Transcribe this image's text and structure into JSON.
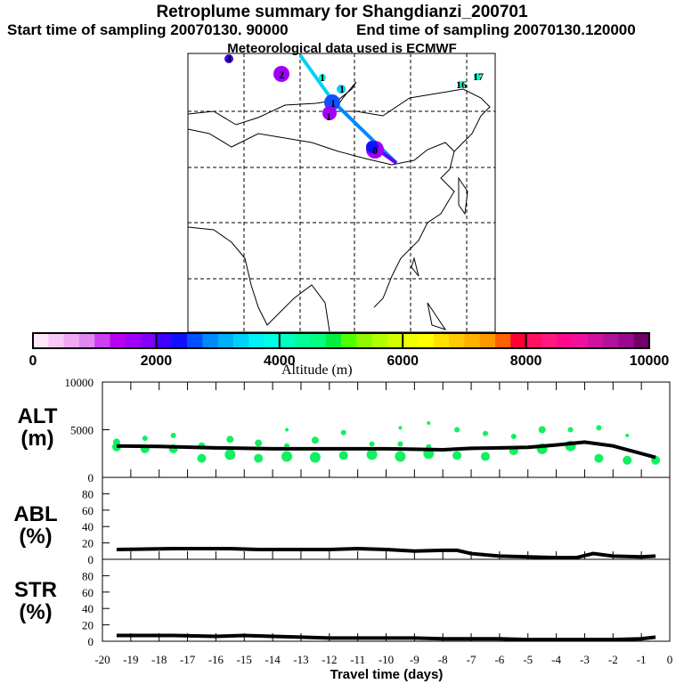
{
  "title": "Retroplume summary for Shangdianzi_200701",
  "subtitle_start": "Start time of sampling 20070130. 90000",
  "subtitle_end": "End time of sampling 20070130.120000",
  "met": "Meteorological data used is ECMWF",
  "chart_data": {
    "type": "line",
    "title": "Retroplume summary for Shangdianzi_200701",
    "xlabel": "Travel time (days)",
    "xlim": [
      -20,
      0
    ],
    "xticks": [
      "-20",
      "-19",
      "-18",
      "-17",
      "-16",
      "-15",
      "-14",
      "-13",
      "-12",
      "-11",
      "-10",
      "-9",
      "-8",
      "-7",
      "-6",
      "-5",
      "-4",
      "-3",
      "-2",
      "-1",
      "0"
    ],
    "colorbar": {
      "label": "Altitude (m)",
      "range": [
        0,
        10000
      ],
      "ticks": [
        "0",
        "2000",
        "4000",
        "6000",
        "8000",
        "10000"
      ],
      "colors": [
        "#fde6fa",
        "#f8c8f8",
        "#f0a8f4",
        "#e088f0",
        "#cc40f0",
        "#b800f0",
        "#a000f8",
        "#8000f8",
        "#4000ff",
        "#1010ff",
        "#0050ff",
        "#0088ff",
        "#00b0f8",
        "#00d0f8",
        "#00f0f8",
        "#00ffe0",
        "#00ffc0",
        "#00ff98",
        "#00ff80",
        "#00f040",
        "#50ff00",
        "#90f800",
        "#b0ff00",
        "#d0ff00",
        "#f0ff00",
        "#ffff00",
        "#ffe000",
        "#ffc800",
        "#ffb000",
        "#ff9800",
        "#ff6000",
        "#ff0030",
        "#ff1060",
        "#ff1880",
        "#ff0890",
        "#f010a0",
        "#d010a0",
        "#b0109a",
        "#980890",
        "#700068"
      ]
    },
    "panels": [
      {
        "name": "ALT",
        "label1": "ALT",
        "label2": "(m)",
        "ylim": [
          0,
          10000
        ],
        "yticks": [
          "0",
          "5000",
          "10000"
        ],
        "x": [
          -19.5,
          -18,
          -16,
          -14,
          -12,
          -10,
          -9,
          -8,
          -7,
          -6,
          -5,
          -4,
          -3,
          -2,
          -1,
          -0.5
        ],
        "y": [
          3300,
          3250,
          3100,
          3000,
          3000,
          3000,
          2950,
          2900,
          3050,
          3100,
          3150,
          3400,
          3700,
          3300,
          2500,
          2100
        ],
        "dots_x": [
          -19.5,
          -19.5,
          -18.5,
          -18.5,
          -17.5,
          -17.5,
          -16.5,
          -16.5,
          -15.5,
          -15.5,
          -14.5,
          -14.5,
          -13.5,
          -13.5,
          -13.5,
          -12.5,
          -12.5,
          -11.5,
          -11.5,
          -10.5,
          -10.5,
          -9.5,
          -9.5,
          -9.5,
          -8.5,
          -8.5,
          -8.5,
          -7.5,
          -7.5,
          -6.5,
          -6.5,
          -5.5,
          -5.5,
          -4.5,
          -4.5,
          -3.5,
          -3.5,
          -2.5,
          -2.5,
          -1.5,
          -1.5,
          -0.5
        ],
        "dots_y": [
          3200,
          3700,
          3000,
          4100,
          3000,
          4400,
          2000,
          3300,
          2400,
          4000,
          2000,
          3600,
          2200,
          3300,
          5000,
          2100,
          3900,
          2300,
          4700,
          2400,
          3500,
          2200,
          3500,
          5200,
          2500,
          3200,
          5700,
          2300,
          5000,
          2200,
          4600,
          2800,
          4300,
          3000,
          5000,
          3300,
          5000,
          2000,
          5200,
          1800,
          4400,
          1800
        ],
        "dots_r": [
          5,
          4,
          5,
          3,
          5,
          3,
          5,
          4,
          6,
          4,
          5,
          4,
          6,
          3,
          2,
          6,
          4,
          5,
          3,
          6,
          3,
          6,
          3,
          2,
          6,
          3,
          2,
          5,
          3,
          5,
          3,
          5,
          3,
          6,
          4,
          6,
          3,
          5,
          3,
          5,
          2,
          5
        ]
      },
      {
        "name": "ABL",
        "label1": "ABL",
        "label2": "(%)",
        "ylim": [
          0,
          100
        ],
        "yticks": [
          "0",
          "20",
          "40",
          "60",
          "80"
        ],
        "x": [
          -19.5,
          -17.5,
          -15.5,
          -14.5,
          -12,
          -11,
          -10,
          -9,
          -8,
          -7.5,
          -7,
          -6,
          -5,
          -4,
          -3.3,
          -2.7,
          -2,
          -1,
          -0.5
        ],
        "y": [
          12,
          13,
          13,
          12,
          12,
          13,
          12,
          10,
          11,
          11,
          7,
          4,
          3,
          2,
          2,
          7,
          4,
          3,
          4
        ]
      },
      {
        "name": "STR",
        "label1": "STR",
        "label2": "(%)",
        "ylim": [
          0,
          100
        ],
        "yticks": [
          "0",
          "20",
          "40",
          "60",
          "80"
        ],
        "x": [
          -19.5,
          -17.5,
          -16,
          -15,
          -14,
          -13,
          -12,
          -11,
          -10,
          -9,
          -8,
          -7,
          -6,
          -5,
          -4,
          -3,
          -2,
          -1,
          -0.5
        ],
        "y": [
          7,
          7,
          6,
          7,
          6,
          5,
          4,
          4,
          4,
          4,
          3,
          3,
          3,
          2,
          2,
          2,
          2,
          3,
          5
        ]
      }
    ]
  },
  "map": {
    "labels": [
      "4",
      "2",
      "1",
      "1",
      "1",
      "1",
      "0",
      "16",
      "17"
    ]
  }
}
